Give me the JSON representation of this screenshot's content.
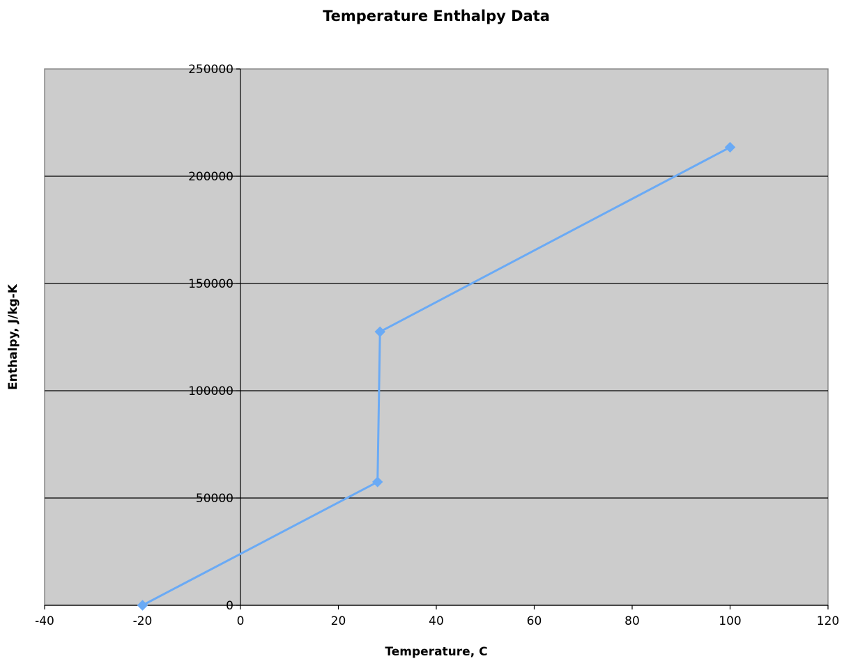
{
  "chart_data": {
    "type": "scatter",
    "title": "Temperature Enthalpy Data",
    "xlabel": "Temperature, C",
    "ylabel": "Enthalpy, J/kg-K",
    "xlim": [
      -40,
      120
    ],
    "ylim": [
      0,
      250000
    ],
    "x_ticks": [
      "-40",
      "-20",
      "0",
      "20",
      "40",
      "60",
      "80",
      "100",
      "120"
    ],
    "y_ticks": [
      "0",
      "50000",
      "100000",
      "150000",
      "200000",
      "250000"
    ],
    "grid": "horizontal",
    "legend": "none",
    "plot_background": "#cccccc",
    "series": [
      {
        "color": "#6aaaf5",
        "marker": "diamond",
        "connected": true,
        "x": [
          -20,
          28,
          28.5,
          100
        ],
        "y": [
          0,
          57500,
          127500,
          213500
        ]
      }
    ]
  }
}
